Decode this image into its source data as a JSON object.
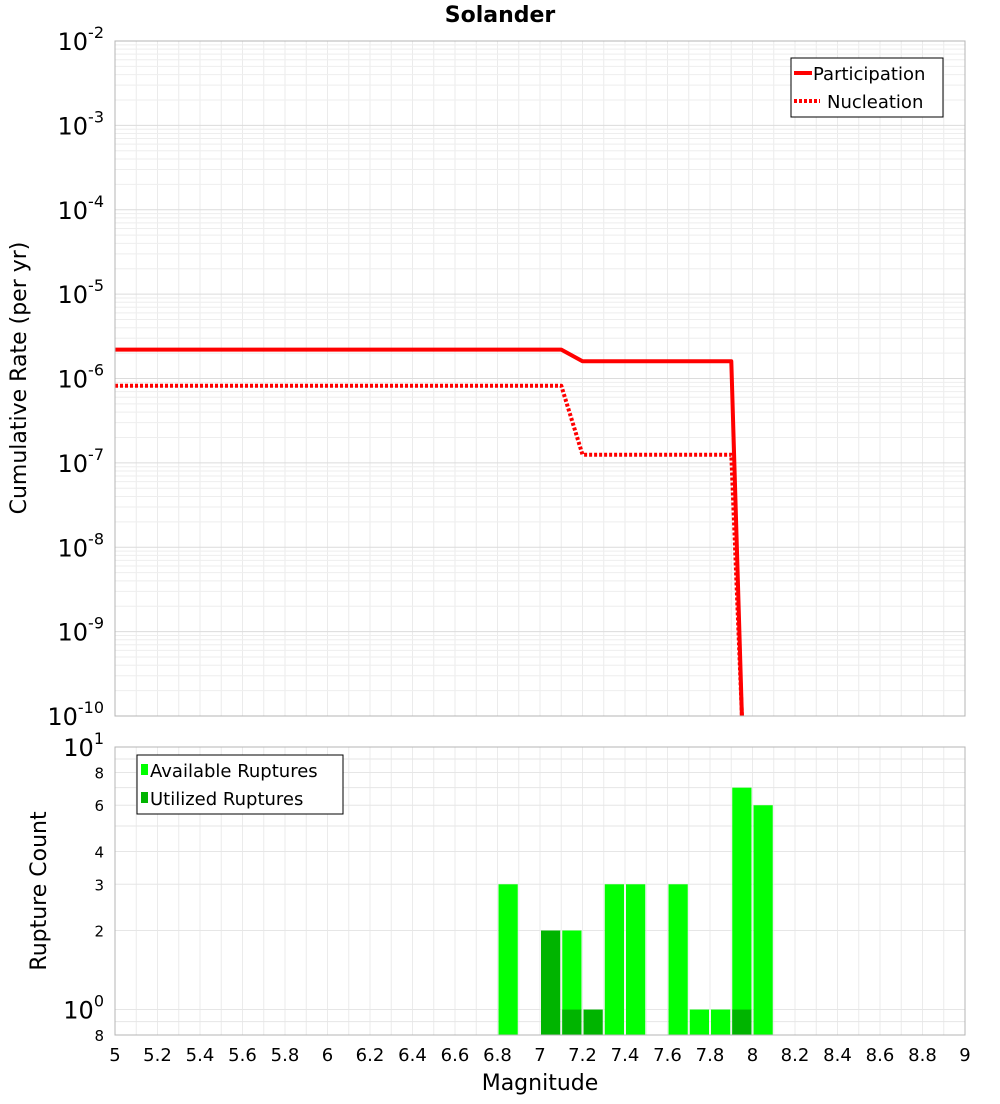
{
  "chart_data": [
    {
      "type": "line",
      "title": "Solander",
      "ylabel": "Cumulative Rate (per yr)",
      "xlim": [
        5,
        9
      ],
      "ylim": [
        1e-10,
        0.01
      ],
      "yscale": "log",
      "grid": true,
      "legend_position": "top-right",
      "y_tick_labels": [
        {
          "value": 0.01,
          "base": "10",
          "exp": "-2"
        },
        {
          "value": 0.001,
          "base": "10",
          "exp": "-3"
        },
        {
          "value": 0.0001,
          "base": "10",
          "exp": "-4"
        },
        {
          "value": 1e-05,
          "base": "10",
          "exp": "-5"
        },
        {
          "value": 1e-06,
          "base": "10",
          "exp": "-6"
        },
        {
          "value": 1e-07,
          "base": "10",
          "exp": "-7"
        },
        {
          "value": 1e-08,
          "base": "10",
          "exp": "-8"
        },
        {
          "value": 1e-09,
          "base": "10",
          "exp": "-9"
        },
        {
          "value": 1e-10,
          "base": "10",
          "exp": "-10"
        }
      ],
      "series": [
        {
          "name": "Participation",
          "color": "#ff0000",
          "style": "solid",
          "x": [
            5.0,
            7.1,
            7.2,
            7.9,
            7.95
          ],
          "y": [
            2.2e-06,
            2.2e-06,
            1.6e-06,
            1.6e-06,
            1e-10
          ]
        },
        {
          "name": "Nucleation",
          "color": "#ff0000",
          "style": "dotted",
          "x": [
            5.0,
            7.1,
            7.2,
            7.9,
            7.95
          ],
          "y": [
            8.2e-07,
            8.2e-07,
            1.25e-07,
            1.25e-07,
            1e-10
          ]
        }
      ]
    },
    {
      "type": "bar",
      "xlabel": "Magnitude",
      "ylabel": "Rupture Count",
      "xlim": [
        5,
        9
      ],
      "ylim": [
        0.8,
        10
      ],
      "yscale": "log",
      "grid": true,
      "legend_position": "top-left",
      "x_ticks": [
        "5",
        "5.2",
        "5.4",
        "5.6",
        "5.8",
        "6",
        "6.2",
        "6.4",
        "6.6",
        "6.8",
        "7",
        "7.2",
        "7.4",
        "7.6",
        "7.8",
        "8",
        "8.2",
        "8.4",
        "8.6",
        "8.8",
        "9"
      ],
      "y_tick_labels": [
        {
          "value": 10,
          "base": "10",
          "exp": "1"
        },
        {
          "value": 8,
          "base": "8",
          "exp": ""
        },
        {
          "value": 6,
          "base": "6",
          "exp": ""
        },
        {
          "value": 4,
          "base": "4",
          "exp": ""
        },
        {
          "value": 3,
          "base": "3",
          "exp": ""
        },
        {
          "value": 2,
          "base": "2",
          "exp": ""
        },
        {
          "value": 1,
          "base": "10",
          "exp": "0"
        },
        {
          "value": 0.8,
          "base": "8",
          "exp": ""
        }
      ],
      "bar_width": 0.1,
      "series": [
        {
          "name": "Available Ruptures",
          "color": "#00ff00",
          "x": [
            6.85,
            7.15,
            7.35,
            7.45,
            7.65,
            7.75,
            7.85,
            7.95,
            8.05
          ],
          "values": [
            3,
            2,
            3,
            3,
            3,
            1,
            1,
            7,
            6
          ]
        },
        {
          "name": "Utilized Ruptures",
          "color": "#00b400",
          "x": [
            7.05,
            7.15,
            7.25,
            7.95
          ],
          "values": [
            2,
            1,
            1,
            1
          ]
        }
      ]
    }
  ]
}
